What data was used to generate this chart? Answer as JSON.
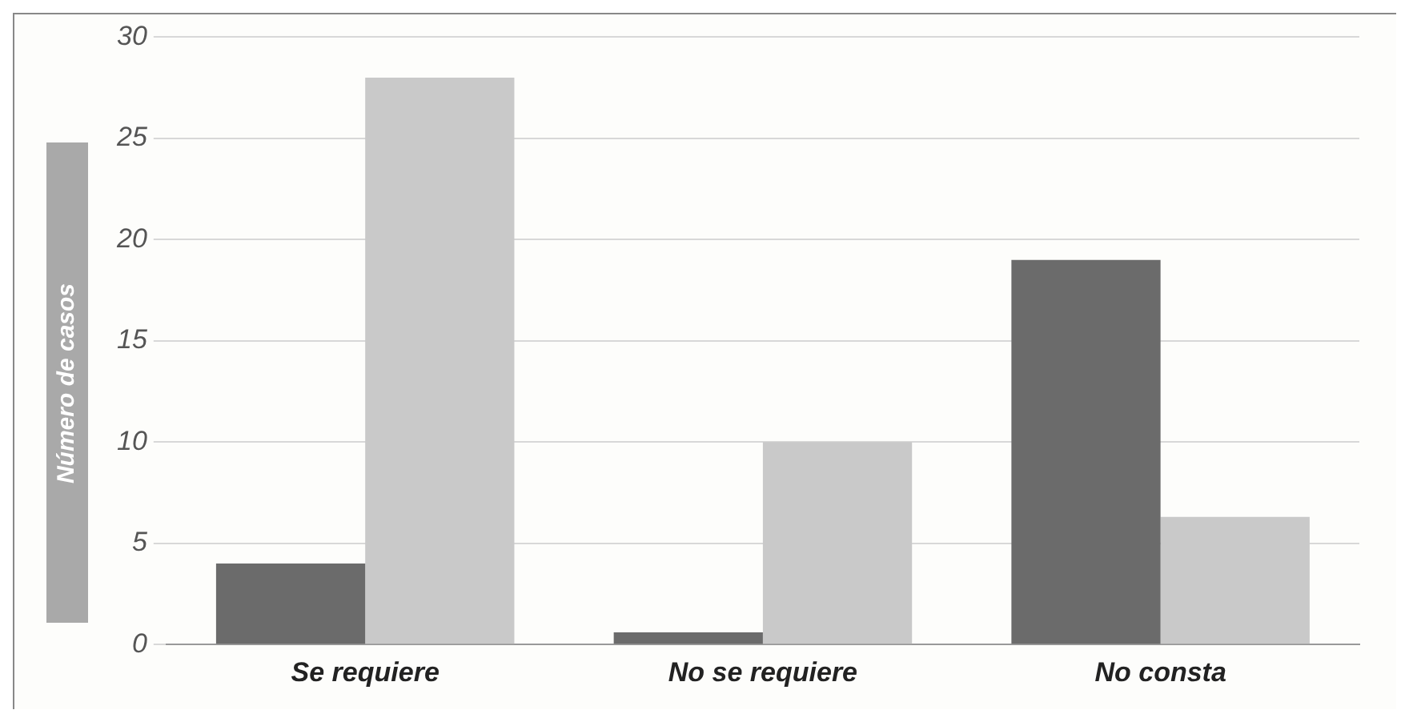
{
  "chart_data": {
    "type": "bar",
    "ylabel": "Número de casos",
    "categories": [
      "Se requiere",
      "No se requiere",
      "No consta"
    ],
    "series": [
      {
        "color": "#6b6b6b",
        "values": [
          4,
          0.6,
          19
        ]
      },
      {
        "color": "#c9c9c9",
        "values": [
          28,
          10,
          6.3
        ]
      }
    ],
    "ylim": [
      0,
      30
    ],
    "yticks": [
      0,
      5,
      10,
      15,
      20,
      25,
      30
    ],
    "grid": "y"
  }
}
